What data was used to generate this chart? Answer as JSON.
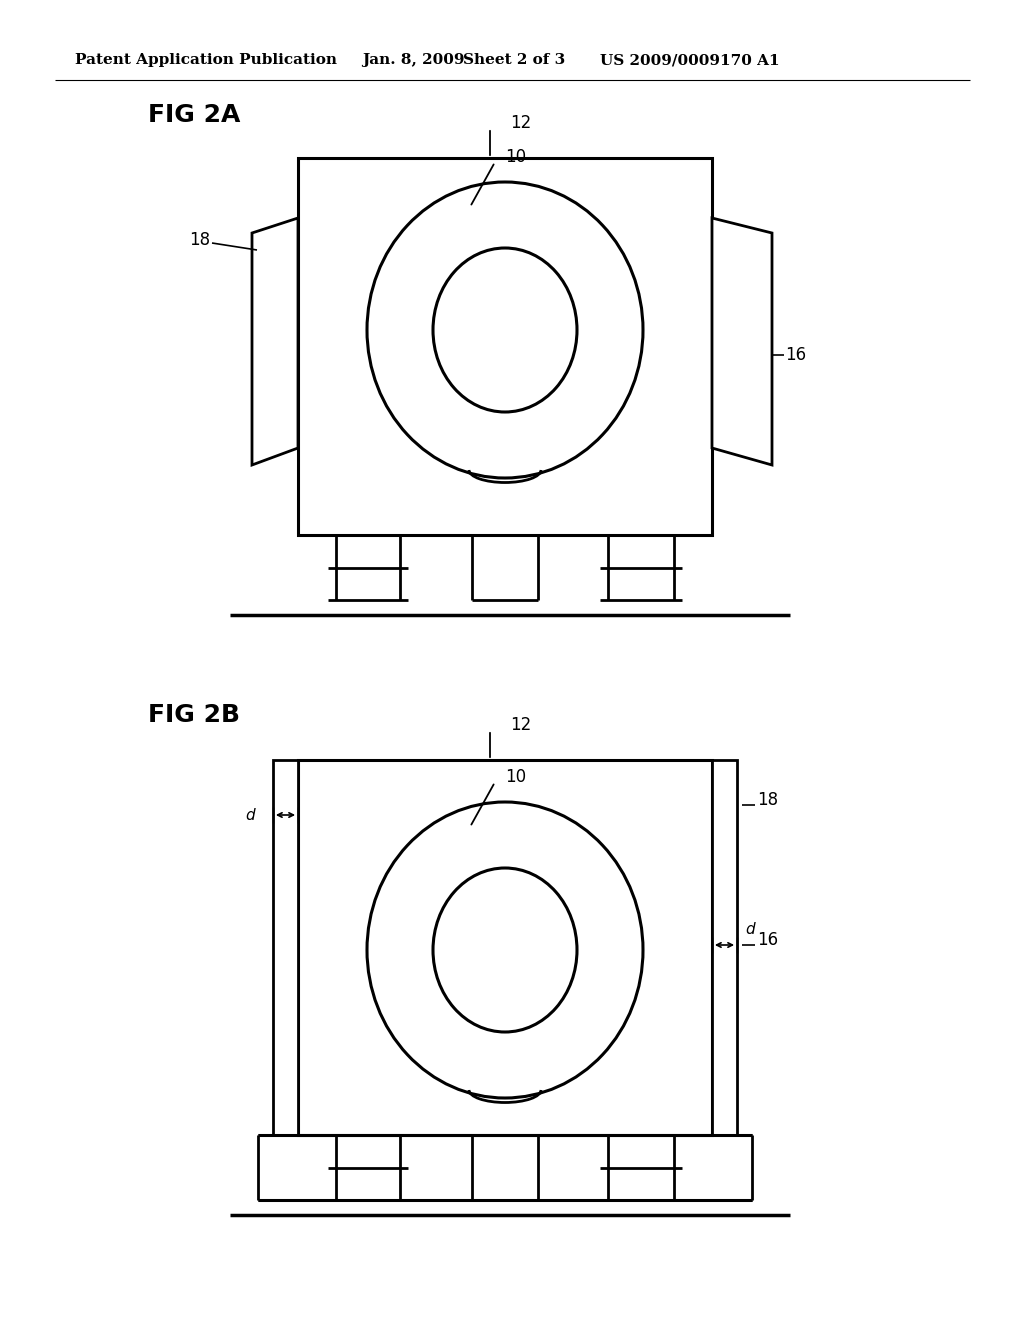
{
  "bg_color": "#ffffff",
  "line_color": "#000000",
  "header_text": "Patent Application Publication",
  "header_date": "Jan. 8, 2009",
  "header_sheet": "Sheet 2 of 3",
  "header_patent": "US 2009/0009170 A1",
  "fig2a_label": "FIG 2A",
  "fig2b_label": "FIG 2B",
  "label_12a": "12",
  "label_10a": "10",
  "label_18a": "18",
  "label_16a": "16",
  "label_12b": "12",
  "label_10b": "10",
  "label_18b": "18",
  "label_16b": "16",
  "label_d1": "d",
  "label_d2": "d"
}
